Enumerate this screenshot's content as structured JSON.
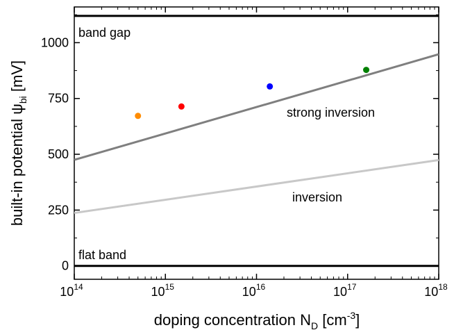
{
  "chart_data": {
    "type": "line",
    "xscale": "log",
    "xlim": [
      100000000000000.0,
      1e+18
    ],
    "ylim": [
      -60,
      1160
    ],
    "grid": false,
    "xticks": [
      {
        "value": 100000000000000.0,
        "base": "10",
        "exp": "14"
      },
      {
        "value": 1000000000000000.0,
        "base": "10",
        "exp": "15"
      },
      {
        "value": 1e+16,
        "base": "10",
        "exp": "16"
      },
      {
        "value": 1e+17,
        "base": "10",
        "exp": "17"
      },
      {
        "value": 1e+18,
        "base": "10",
        "exp": "18"
      }
    ],
    "yticks": [
      {
        "value": 0,
        "label": "0"
      },
      {
        "value": 250,
        "label": "250"
      },
      {
        "value": 500,
        "label": "500"
      },
      {
        "value": 750,
        "label": "750"
      },
      {
        "value": 1000,
        "label": "1000"
      }
    ],
    "xlabel": {
      "main": "doping concentration N",
      "sub": "D",
      "unit_pre": " [cm",
      "unit_sup": "-3",
      "unit_post": "]"
    },
    "ylabel": {
      "main": "built-in potential ψ",
      "sub": "bi",
      "unit": " [mV]"
    },
    "hlines": [
      {
        "y": 1120,
        "color": "#000000",
        "label": "band gap"
      },
      {
        "y": 0,
        "color": "#000000",
        "label": "flat band"
      }
    ],
    "series": [
      {
        "x": [
          100000000000000.0,
          1e+18
        ],
        "y": [
          475,
          948
        ],
        "color": "#7f7f7f"
      },
      {
        "x": [
          100000000000000.0,
          1e+18
        ],
        "y": [
          237,
          474
        ],
        "color": "#c8c8c8"
      }
    ],
    "series_labels": [
      "strong inversion",
      "inversion"
    ],
    "points": [
      {
        "x": 500000000000000.0,
        "y": 672,
        "color": "#ff8c00"
      },
      {
        "x": 1500000000000000.0,
        "y": 714,
        "color": "#ff0000"
      },
      {
        "x": 1.4e+16,
        "y": 804,
        "color": "#0000ff"
      },
      {
        "x": 1.6e+17,
        "y": 878,
        "color": "#008000"
      }
    ]
  }
}
